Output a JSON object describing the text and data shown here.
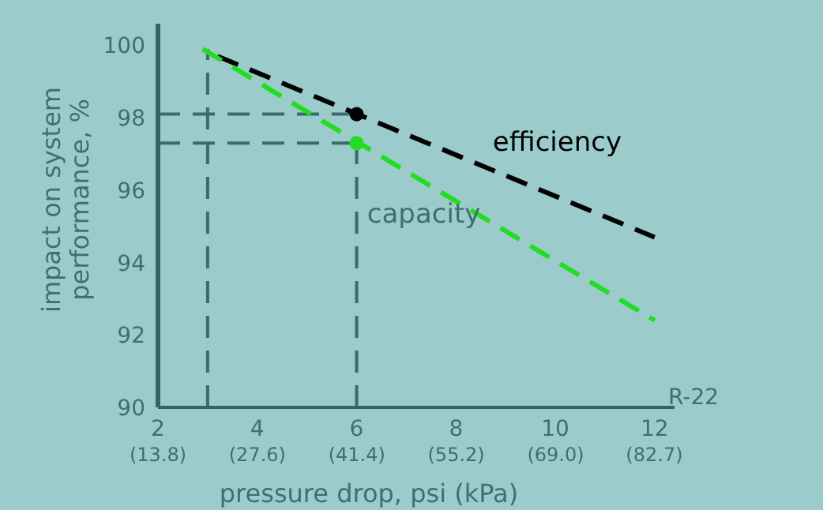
{
  "chart_data": {
    "type": "line",
    "xlabel": "pressure drop, psi (kPa)",
    "ylabel": "impact on system\nperformance, %",
    "annotations": [
      "R-22"
    ],
    "xlim": [
      2,
      12.4
    ],
    "ylim": [
      90,
      100.6
    ],
    "xticks": [
      2,
      4,
      6,
      8,
      10,
      12
    ],
    "x2lim": [
      13.8,
      85.5
    ],
    "x2ticks": [
      {
        "value": 13.8,
        "label": "(13.8)"
      },
      {
        "value": 27.6,
        "label": "(27.6)"
      },
      {
        "value": 41.4,
        "label": "(41.4)"
      },
      {
        "value": 55.2,
        "label": "(55.2)"
      },
      {
        "value": 69.0,
        "label": "(69.0)"
      },
      {
        "value": 82.7,
        "label": "(82.7)"
      }
    ],
    "yticks": [
      90,
      92,
      94,
      96,
      98,
      100
    ],
    "grid": false,
    "legend": false,
    "series": [
      {
        "name": "efficiency",
        "color": "#000000",
        "x": [
          3.2,
          12
        ],
        "values": [
          99.7,
          94.7
        ],
        "line_style": "dashed",
        "marker": "none"
      },
      {
        "name": "capacity",
        "color": "#22dd22",
        "x": [
          2.9,
          12
        ],
        "values": [
          99.9,
          92.4
        ],
        "line_style": "dashed",
        "marker": "none"
      },
      {
        "type": "scatter",
        "color": "#000000",
        "x": [
          6
        ],
        "values": [
          98.1
        ],
        "marker": "circle"
      },
      {
        "type": "scatter",
        "color": "#22dd22",
        "x": [
          6
        ],
        "values": [
          97.3
        ],
        "marker": "circle"
      },
      {
        "color": "#3d6b6b",
        "x": [
          2,
          6
        ],
        "values": [
          98.1,
          98.1
        ],
        "line_style": "dashed",
        "marker": "none"
      },
      {
        "color": "#3d6b6b",
        "x": [
          2,
          6
        ],
        "values": [
          97.3,
          97.3
        ],
        "line_style": "dashed",
        "marker": "none"
      },
      {
        "color": "#3d6b6b",
        "x": [
          3,
          3
        ],
        "values": [
          90,
          99.9
        ],
        "line_style": "dashed",
        "marker": "none"
      },
      {
        "color": "#3d6b6b",
        "x": [
          6,
          6
        ],
        "values": [
          90,
          97.3
        ],
        "line_style": "dashed",
        "marker": "none"
      }
    ]
  }
}
